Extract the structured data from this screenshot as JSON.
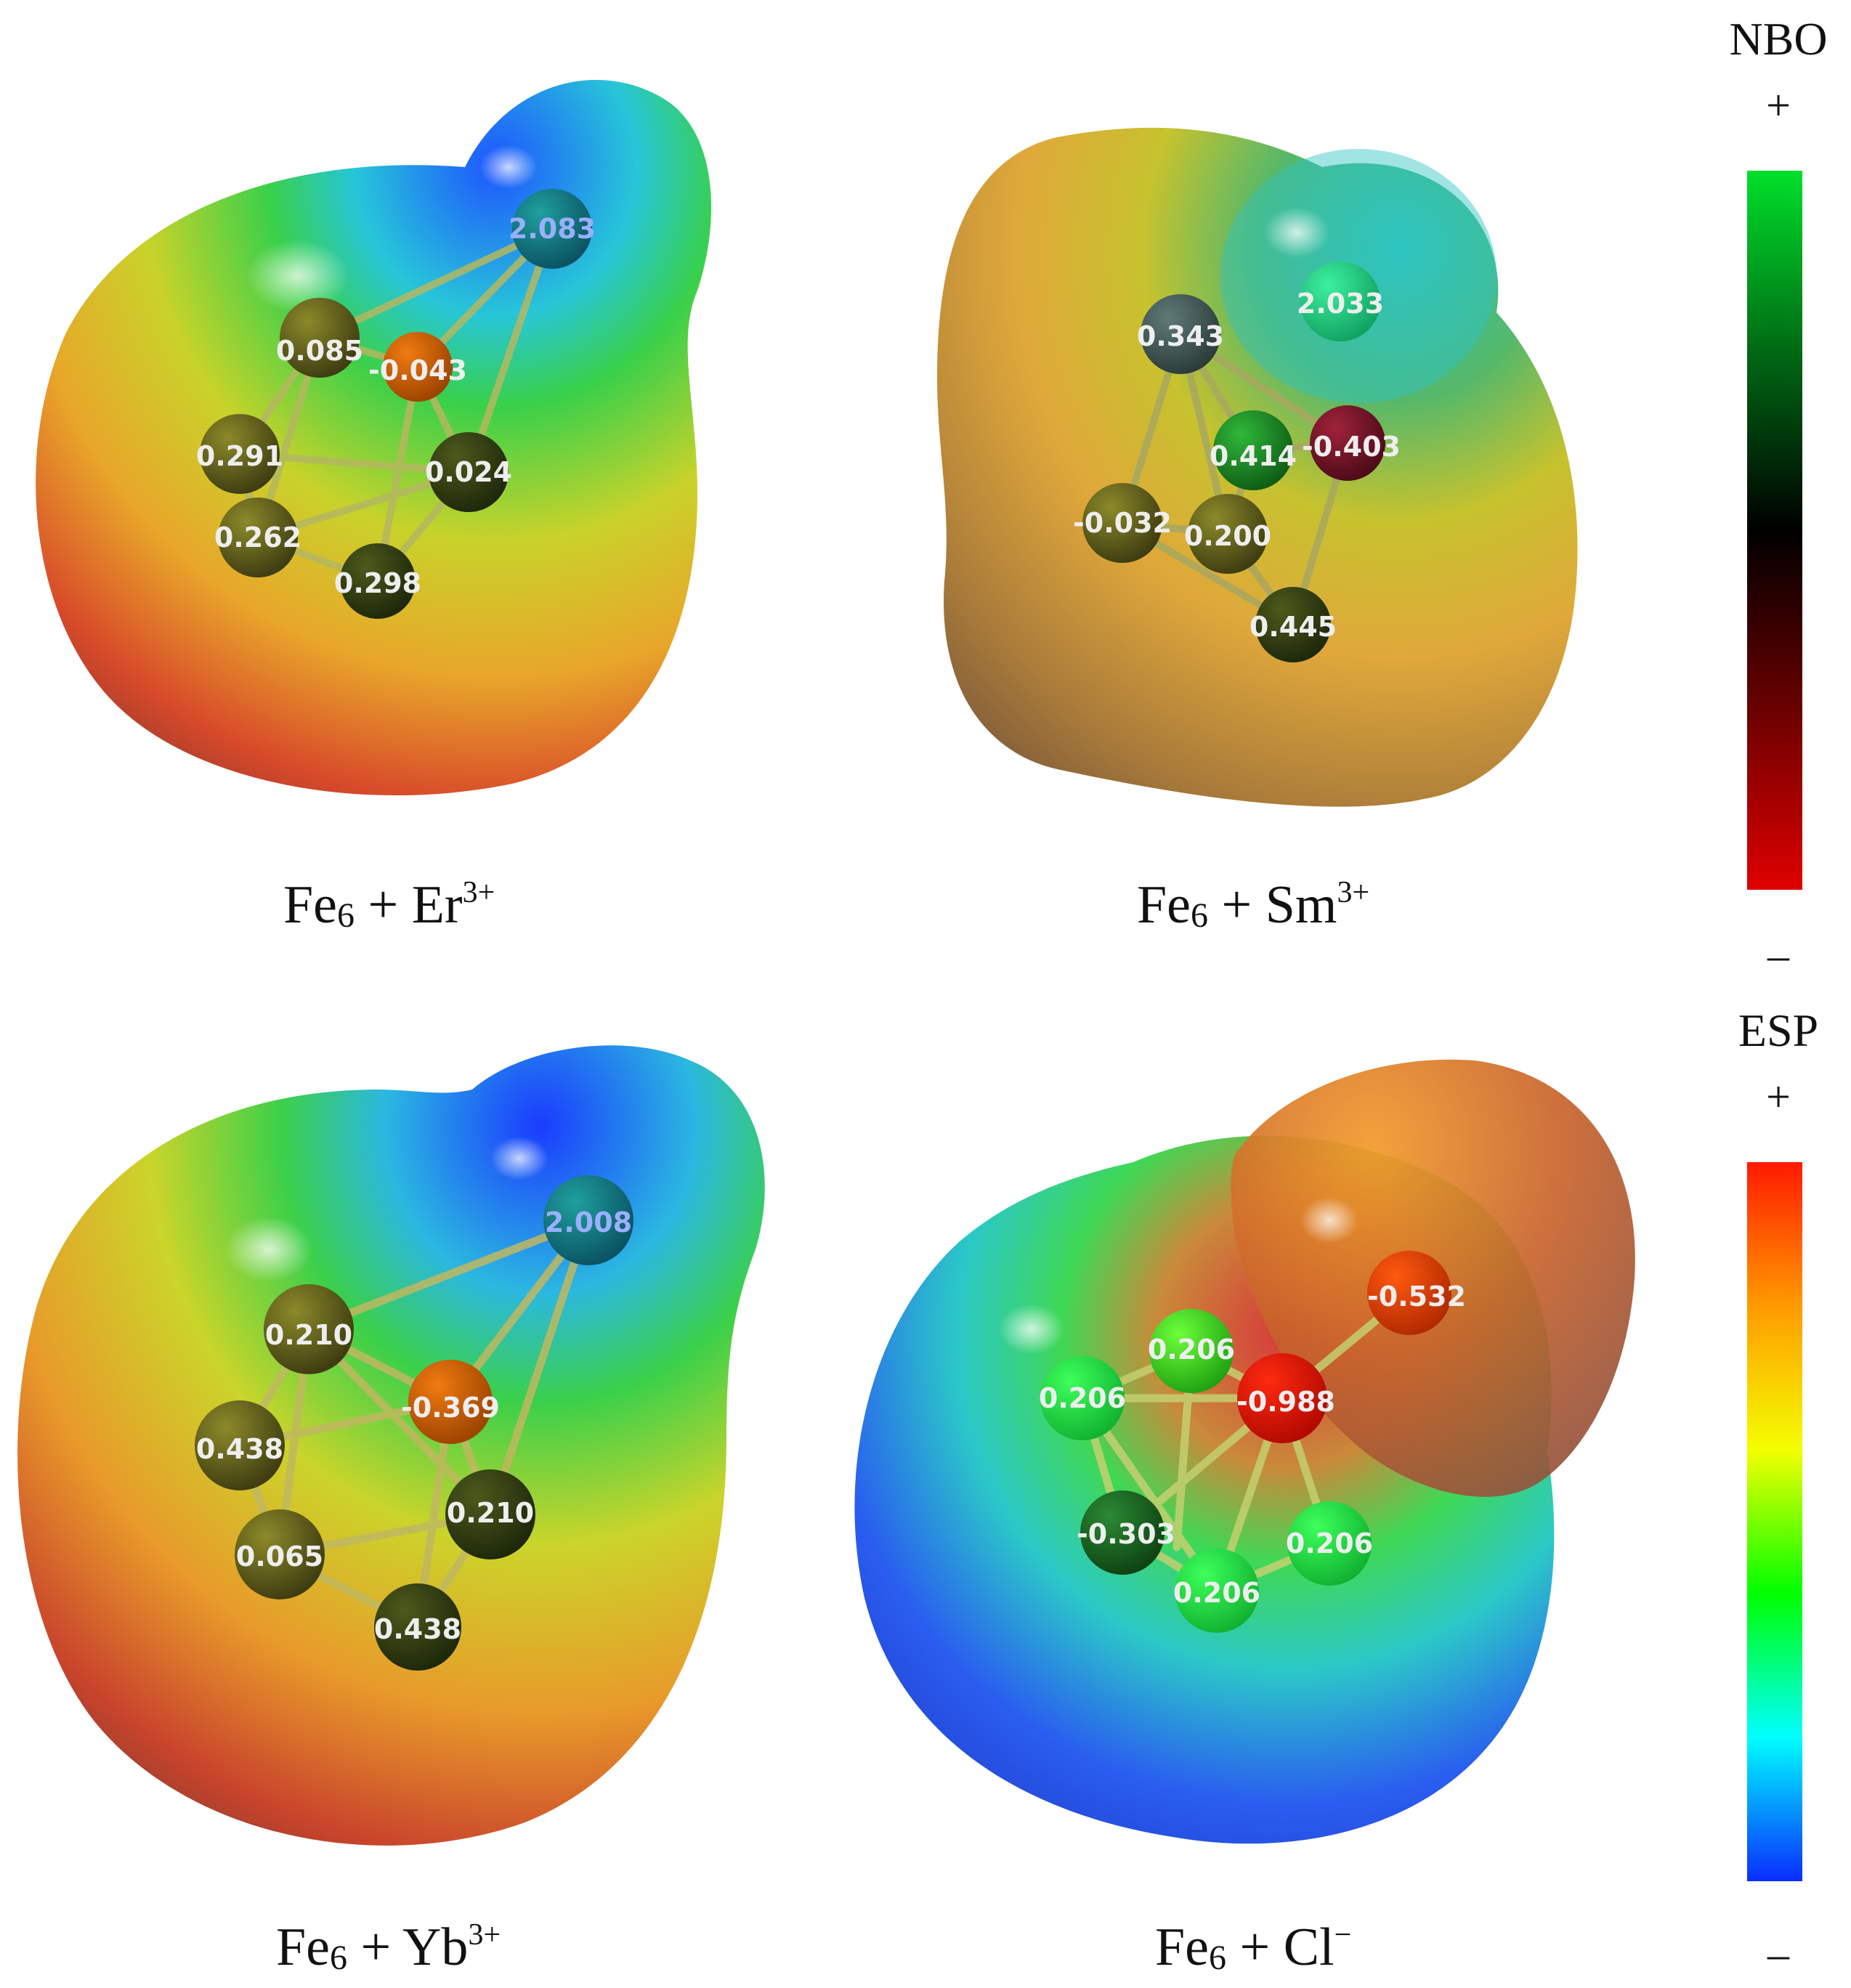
{
  "panels": [
    {
      "id": "er",
      "caption": {
        "base": "Fe",
        "sub": "6",
        "mid": " + Er",
        "sup": "3+"
      },
      "ion_charge": "2.083",
      "atoms": [
        "0.085",
        "-0.043",
        "0.291",
        "0.024",
        "0.262",
        "0.298"
      ]
    },
    {
      "id": "sm",
      "caption": {
        "base": "Fe",
        "sub": "6",
        "mid": " + Sm",
        "sup": "3+"
      },
      "ion_charge": "2.033",
      "atoms": [
        "0.343",
        "0.414",
        "-0.403",
        "-0.032",
        "0.200",
        "0.445"
      ]
    },
    {
      "id": "yb",
      "caption": {
        "base": "Fe",
        "sub": "6",
        "mid": " + Yb",
        "sup": "3+"
      },
      "ion_charge": "2.008",
      "atoms": [
        "0.210",
        "-0.369",
        "0.438",
        "0.210",
        "0.065",
        "0.438"
      ]
    },
    {
      "id": "cl",
      "caption": {
        "base": "Fe",
        "sub": "6",
        "mid": " + Cl",
        "sup": "−"
      },
      "ion_charge": "-0.532",
      "atoms": [
        "0.206",
        "0.206",
        "-0.988",
        "-0.303",
        "0.206",
        "0.206"
      ]
    }
  ],
  "scales": {
    "nbo": {
      "title": "NBO",
      "plus": "+",
      "minus": "–",
      "colors": [
        "#00e02a",
        "#006a14",
        "#000000",
        "#6a0000",
        "#e00000"
      ]
    },
    "esp": {
      "title": "ESP",
      "plus": "+",
      "minus": "–",
      "colors": [
        "#ff1a00",
        "#ff9a00",
        "#f4ff00",
        "#00ff00",
        "#00ffff",
        "#0a2cff"
      ]
    }
  }
}
